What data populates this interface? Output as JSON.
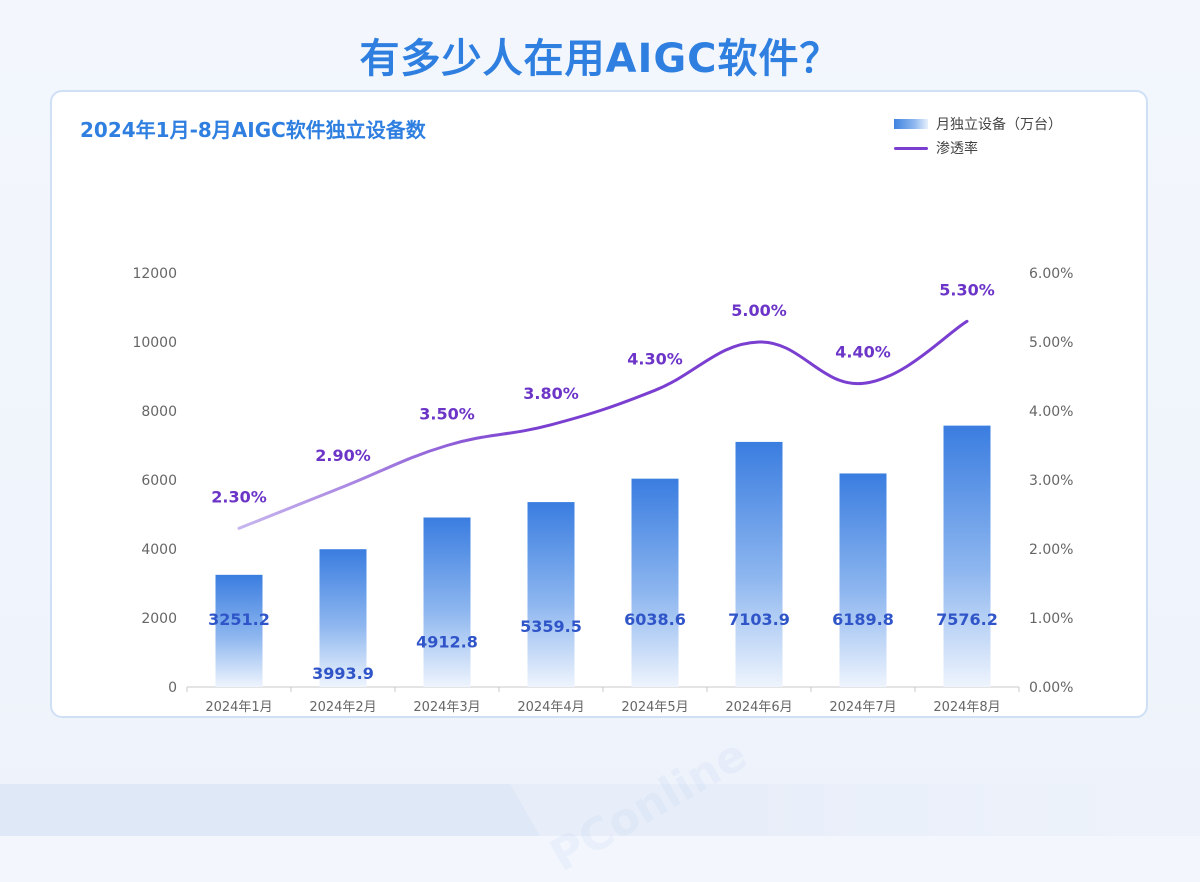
{
  "page": {
    "title": "有多少人在用AIGC软件？",
    "watermark": "PConline"
  },
  "colors": {
    "bar_top": "#3a7de0",
    "bar_bottom": "#eef4fd",
    "line": "#7a3fd0",
    "line_faded": "#c8b6ee",
    "percent_label": "#6c35c8",
    "bar_label": "#2f55c8",
    "axis_text": "#666666"
  },
  "chart_data": {
    "type": "bar",
    "title": "2024年1月-8月AIGC软件独立设备数",
    "categories": [
      "2024年1月",
      "2024年2月",
      "2024年3月",
      "2024年4月",
      "2024年5月",
      "2024年6月",
      "2024年7月",
      "2024年8月"
    ],
    "series": [
      {
        "name": "月独立设备（万台）",
        "type": "bar",
        "axis": "left",
        "values": [
          3251.2,
          3993.9,
          4912.8,
          5359.5,
          6038.6,
          7103.9,
          6189.8,
          7576.2
        ],
        "labels": [
          "3251.2",
          "3993.9",
          "4912.8",
          "5359.5",
          "6038.6",
          "7103.9",
          "6189.8",
          "7576.2"
        ]
      },
      {
        "name": "渗透率",
        "type": "line",
        "axis": "right",
        "values": [
          2.3,
          2.9,
          3.5,
          3.8,
          4.3,
          5.0,
          4.4,
          5.3
        ],
        "labels": [
          "2.30%",
          "2.90%",
          "3.50%",
          "3.80%",
          "4.30%",
          "5.00%",
          "4.40%",
          "5.30%"
        ]
      }
    ],
    "ylim": [
      0,
      12000
    ],
    "y_ticks": [
      "0",
      "2000",
      "4000",
      "6000",
      "8000",
      "10000",
      "12000"
    ],
    "y2lim": [
      0,
      6
    ],
    "y2_ticks": [
      "0.00%",
      "1.00%",
      "2.00%",
      "3.00%",
      "4.00%",
      "5.00%",
      "6.00%"
    ],
    "grid": false,
    "legend_position": "top-right"
  }
}
